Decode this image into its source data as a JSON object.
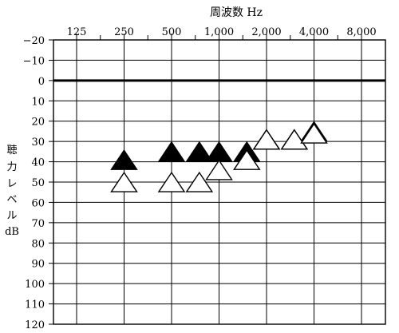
{
  "chart_data": {
    "type": "scatter",
    "title": "周波数 Hz",
    "ylabel_chars": [
      "聴",
      "力",
      "レ",
      "ベ",
      "ル",
      "dB"
    ],
    "x_ticks": [
      "125",
      "250",
      "500",
      "1,000",
      "2,000",
      "4,000",
      "8,000"
    ],
    "y_ticks": [
      "−20",
      "−10",
      "0",
      "10",
      "20",
      "30",
      "40",
      "50",
      "60",
      "70",
      "80",
      "90",
      "100",
      "110",
      "120"
    ],
    "y_values": [
      -20,
      -10,
      0,
      10,
      20,
      30,
      40,
      50,
      60,
      70,
      80,
      90,
      100,
      110,
      120
    ],
    "ylim": [
      -20,
      120
    ],
    "y_inverted": true,
    "reference_line_db": 0,
    "grid": true,
    "series": [
      {
        "marker": "filled-triangle",
        "color": "#000000",
        "points": [
          {
            "freq": 250,
            "db": 40
          },
          {
            "freq": 500,
            "db": 36
          },
          {
            "freq": 750,
            "db": 36
          },
          {
            "freq": 1000,
            "db": 36
          },
          {
            "freq": 1500,
            "db": 36
          },
          {
            "freq": 2000,
            "db": 30
          },
          {
            "freq": 3000,
            "db": 30
          },
          {
            "freq": 4000,
            "db": 26
          }
        ]
      },
      {
        "marker": "open-triangle",
        "color": "#000000",
        "points": [
          {
            "freq": 250,
            "db": 51
          },
          {
            "freq": 500,
            "db": 51
          },
          {
            "freq": 750,
            "db": 51
          },
          {
            "freq": 1000,
            "db": 45
          },
          {
            "freq": 1500,
            "db": 40
          },
          {
            "freq": 2000,
            "db": 30
          },
          {
            "freq": 3000,
            "db": 30
          },
          {
            "freq": 4000,
            "db": 27
          }
        ]
      }
    ]
  }
}
